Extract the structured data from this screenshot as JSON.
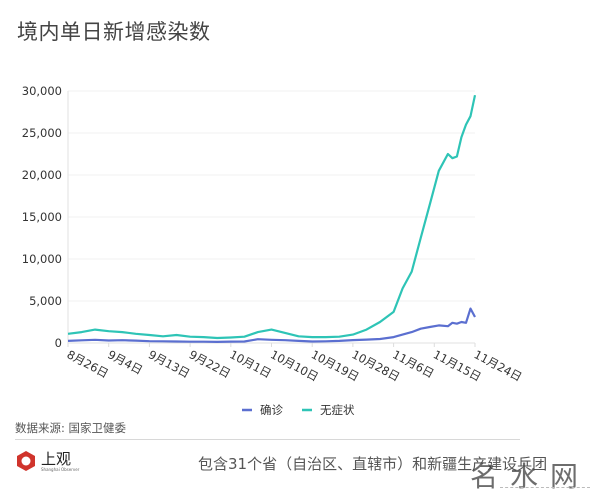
{
  "title": "境内单日新增感染数",
  "source": "数据来源: 国家卫健委",
  "note": "包含31个省（自治区、直辖市）和新疆生产建设兵团",
  "logo": {
    "cn": "上观",
    "en": "Shanghai Observer"
  },
  "watermark": "名水网",
  "colors": {
    "confirmed": "#5b6fd0",
    "asymptomatic": "#2ec4b6",
    "grid": "#f0f0f0",
    "axis": "#cccccc"
  },
  "chart_data": {
    "type": "line",
    "title": "境内单日新增感染数",
    "xlabel": "",
    "ylabel": "",
    "ylim": [
      0,
      30000
    ],
    "yticks": [
      0,
      5000,
      10000,
      15000,
      20000,
      25000,
      30000
    ],
    "ytick_labels": [
      "0",
      "5,000",
      "10,000",
      "15,000",
      "20,000",
      "25,000",
      "30,000"
    ],
    "xtick_labels": [
      "8月26日",
      "9月4日",
      "9月13日",
      "9月22日",
      "10月1日",
      "10月10日",
      "10月19日",
      "10月28日",
      "11月6日",
      "11月15日",
      "11月24日"
    ],
    "legend": {
      "position": "bottom",
      "entries": [
        "确诊",
        "无症状"
      ]
    },
    "grid": true,
    "x": [
      0,
      3,
      6,
      9,
      12,
      15,
      18,
      21,
      24,
      27,
      30,
      33,
      36,
      39,
      42,
      45,
      48,
      51,
      54,
      57,
      60,
      63,
      66,
      69,
      72,
      74,
      76,
      78,
      80,
      82,
      84,
      85,
      86,
      87,
      88,
      89,
      90
    ],
    "x_note": "days since 8月26日",
    "series": [
      {
        "name": "确诊",
        "color": "#5b6fd0",
        "values": [
          250,
          320,
          380,
          300,
          330,
          280,
          220,
          200,
          180,
          150,
          160,
          130,
          170,
          180,
          450,
          380,
          330,
          250,
          180,
          200,
          250,
          350,
          400,
          480,
          700,
          1000,
          1300,
          1700,
          1900,
          2100,
          2000,
          2400,
          2300,
          2500,
          2400,
          4100,
          3100
        ]
      },
      {
        "name": "无症状",
        "color": "#2ec4b6",
        "values": [
          1100,
          1300,
          1600,
          1400,
          1300,
          1100,
          950,
          800,
          950,
          750,
          700,
          600,
          650,
          750,
          1300,
          1600,
          1200,
          800,
          700,
          700,
          750,
          1000,
          1600,
          2500,
          3700,
          6500,
          8500,
          12500,
          16500,
          20500,
          22500,
          22000,
          22200,
          24500,
          26000,
          27000,
          29500
        ]
      }
    ]
  }
}
